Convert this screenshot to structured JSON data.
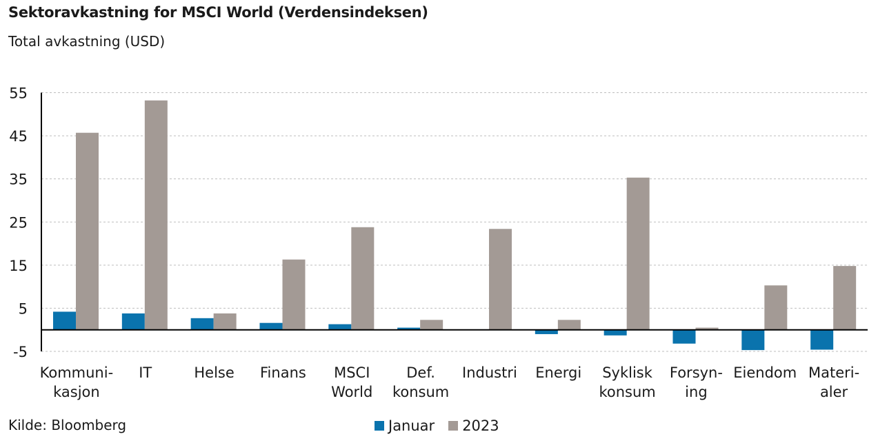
{
  "header": {
    "title": "Sektoravkastning for MSCI World (Verdensindeksen)",
    "subtitle": "Total avkastning (USD)"
  },
  "footer": {
    "source": "Kilde: Bloomberg"
  },
  "colors": {
    "januar": "#0a73ad",
    "y2023": "#a39a95",
    "grid": "#bdbdbd",
    "axis": "#000000"
  },
  "chart_data": {
    "type": "bar",
    "title": "Sektoravkastning for MSCI World (Verdensindeksen)",
    "subtitle": "Total avkastning (USD)",
    "categories": [
      [
        "Kommuni-",
        "kasjon"
      ],
      [
        "IT"
      ],
      [
        "Helse"
      ],
      [
        "Finans"
      ],
      [
        "MSCI",
        "World"
      ],
      [
        "Def.",
        "konsum"
      ],
      [
        "Industri"
      ],
      [
        "Energi"
      ],
      [
        "Syklisk",
        "konsum"
      ],
      [
        "Forsyn-",
        "ing"
      ],
      [
        "Eiendom"
      ],
      [
        "Materi-",
        "aler"
      ]
    ],
    "series": [
      {
        "name": "Januar",
        "values": [
          4.2,
          3.8,
          2.7,
          1.6,
          1.3,
          0.5,
          0.1,
          -1.0,
          -1.3,
          -3.2,
          -4.7,
          -4.6
        ]
      },
      {
        "name": "2023",
        "values": [
          45.7,
          53.2,
          3.8,
          16.3,
          23.8,
          2.3,
          23.4,
          2.3,
          35.3,
          0.5,
          10.3,
          14.8
        ]
      }
    ],
    "y_ticks": [
      55,
      45,
      35,
      25,
      15,
      5,
      -5
    ],
    "ylim": [
      -5,
      55
    ],
    "grid": true,
    "legend": "bottom-center"
  }
}
